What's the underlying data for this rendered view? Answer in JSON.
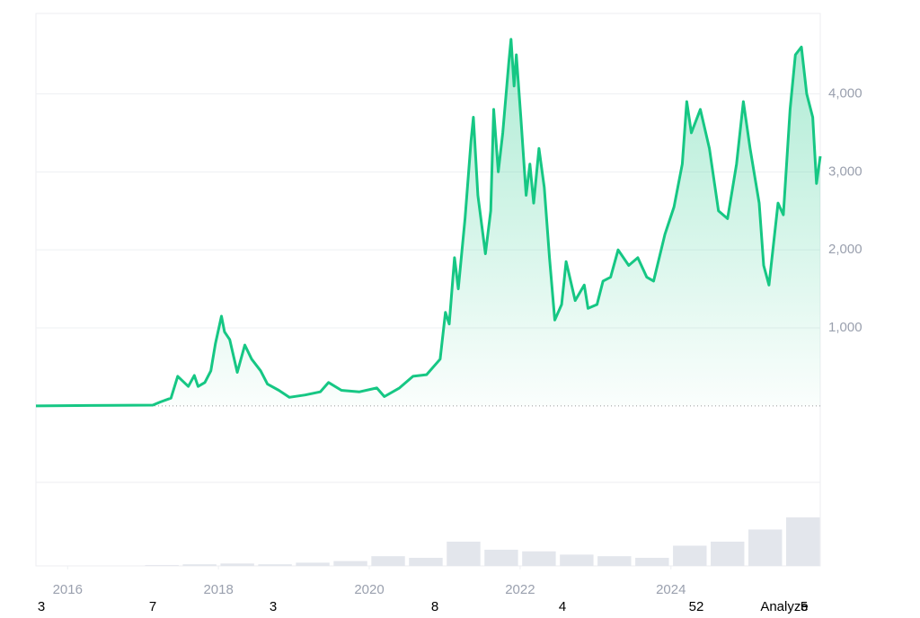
{
  "chart_data": {
    "type": "line",
    "x": [
      2015.58,
      2016.3,
      2017.13,
      2017.23,
      2017.37,
      2017.46,
      2017.6,
      2017.68,
      2017.73,
      2017.82,
      2017.9,
      2017.96,
      2018.04,
      2018.08,
      2018.15,
      2018.25,
      2018.35,
      2018.44,
      2018.56,
      2018.65,
      2018.8,
      2018.94,
      2019.15,
      2019.35,
      2019.46,
      2019.63,
      2019.87,
      2020.1,
      2020.2,
      2020.4,
      2020.58,
      2020.76,
      2020.94,
      2021.01,
      2021.06,
      2021.13,
      2021.18,
      2021.27,
      2021.35,
      2021.38,
      2021.44,
      2021.54,
      2021.61,
      2021.65,
      2021.71,
      2021.77,
      2021.85,
      2021.88,
      2021.92,
      2021.95,
      2022.01,
      2022.08,
      2022.13,
      2022.18,
      2022.25,
      2022.32,
      2022.39,
      2022.46,
      2022.55,
      2022.61,
      2022.73,
      2022.85,
      2022.9,
      2023.02,
      2023.1,
      2023.2,
      2023.3,
      2023.44,
      2023.56,
      2023.68,
      2023.77,
      2023.92,
      2024.04,
      2024.15,
      2024.21,
      2024.27,
      2024.39,
      2024.51,
      2024.63,
      2024.75,
      2024.87,
      2024.96,
      2025.05,
      2025.17,
      2025.23,
      2025.3,
      2025.42,
      2025.49,
      2025.58,
      2025.65,
      2025.73,
      2025.8,
      2025.88,
      2025.93,
      2025.98
    ],
    "series": [
      {
        "color": "#16c784",
        "values": [
          0,
          5,
          10,
          50,
          100,
          380,
          250,
          390,
          250,
          300,
          450,
          800,
          1150,
          950,
          850,
          430,
          780,
          600,
          450,
          280,
          200,
          110,
          140,
          180,
          300,
          200,
          180,
          230,
          120,
          230,
          380,
          400,
          600,
          1200,
          1050,
          1900,
          1500,
          2400,
          3400,
          3700,
          2700,
          1950,
          2500,
          3800,
          3000,
          3500,
          4400,
          4700,
          4100,
          4500,
          3700,
          2700,
          3100,
          2600,
          3300,
          2800,
          1900,
          1100,
          1300,
          1850,
          1350,
          1550,
          1250,
          1300,
          1600,
          1650,
          2000,
          1800,
          1900,
          1650,
          1600,
          2200,
          2550,
          3100,
          3900,
          3500,
          3800,
          3300,
          2500,
          2400,
          3100,
          3900,
          3300,
          2600,
          1800,
          1550,
          2600,
          2450,
          3800,
          4500,
          4600,
          4000,
          3700,
          2850,
          3200
        ]
      }
    ],
    "reference_line": 0,
    "volume": {
      "x": [
        2015.75,
        2016.25,
        2016.75,
        2017.25,
        2017.75,
        2018.25,
        2018.75,
        2019.25,
        2019.75,
        2020.25,
        2020.75,
        2021.25,
        2021.75,
        2022.25,
        2022.75,
        2023.25,
        2023.75,
        2024.25,
        2024.75,
        2025.25,
        2025.75
      ],
      "values": [
        0,
        0,
        0,
        1,
        2,
        3,
        2,
        4,
        6,
        12,
        10,
        30,
        20,
        18,
        14,
        12,
        10,
        25,
        30,
        45,
        60
      ],
      "ylim": [
        0,
        100
      ],
      "color": "#e3e6ec"
    },
    "xlim": [
      2015.58,
      2025.98
    ],
    "xticks": [
      2016,
      2018,
      2020,
      2022,
      2024
    ],
    "ylim": [
      -980,
      5030
    ],
    "yticks": [
      {
        "value": 1000,
        "label": "1,000"
      },
      {
        "value": 2000,
        "label": "2,000"
      },
      {
        "value": 3000,
        "label": "3,000"
      },
      {
        "value": 4000,
        "label": "4,000"
      }
    ],
    "grid": true,
    "footer_labels": [
      "3",
      "7",
      "3",
      "8",
      "4",
      "52",
      "Analyze",
      "5"
    ]
  }
}
